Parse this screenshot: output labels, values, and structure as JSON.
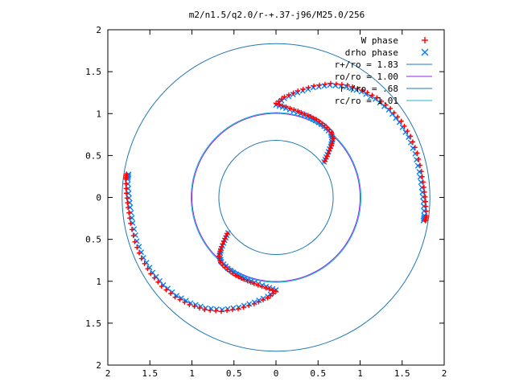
{
  "chart_data": {
    "type": "scatter",
    "title": "m2/n1.5/q2.0/r-+.37-j96/M25.0/256",
    "xlabel": "",
    "ylabel": "",
    "xlim": [
      -2,
      2
    ],
    "ylim": [
      -2,
      2
    ],
    "x_tick_labels": [
      "2",
      "1.5",
      "1",
      "0.5",
      "0",
      "0.5",
      "1",
      "1.5",
      "2"
    ],
    "y_tick_labels": [
      "2",
      "1.5",
      "1",
      "0.5",
      "0",
      "0.5",
      "1",
      "1.5",
      "2"
    ],
    "x_tick_values": [
      -2,
      -1.5,
      -1,
      -0.5,
      0,
      0.5,
      1,
      1.5,
      2
    ],
    "y_tick_values": [
      -2,
      -1.5,
      -1,
      -0.5,
      0,
      0.5,
      1,
      1.5,
      2
    ],
    "grid": false,
    "legend_position": "top-right",
    "series": [
      {
        "name": "W phase",
        "marker": "plus",
        "color": "#ff0000"
      },
      {
        "name": "drho phase",
        "marker": "cross",
        "color": "#0080ff"
      },
      {
        "name": "r+/ro = 1.83",
        "marker": "line",
        "color": "#1f78b4",
        "radius": 1.83
      },
      {
        "name": "ro/ro = 1.00",
        "marker": "line",
        "color": "#8a2be2",
        "radius": 1.0
      },
      {
        "name": "r-/ro = .68",
        "marker": "line",
        "color": "#1f78b4",
        "radius": 0.68
      },
      {
        "name": "rc/ro = 1.01",
        "marker": "line",
        "color": "#20b2d8",
        "radius": 1.01
      }
    ],
    "arms": [
      {
        "arm": "upper-right",
        "points": [
          [
            0.58,
            0.43
          ],
          [
            0.62,
            0.52
          ],
          [
            0.66,
            0.62
          ],
          [
            0.68,
            0.7
          ],
          [
            0.66,
            0.78
          ],
          [
            0.58,
            0.86
          ],
          [
            0.48,
            0.93
          ],
          [
            0.38,
            0.98
          ],
          [
            0.26,
            1.03
          ],
          [
            0.12,
            1.08
          ],
          [
            0.0,
            1.12
          ],
          [
            0.1,
            1.2
          ],
          [
            0.26,
            1.27
          ],
          [
            0.45,
            1.33
          ],
          [
            0.65,
            1.36
          ],
          [
            0.85,
            1.34
          ],
          [
            1.03,
            1.28
          ],
          [
            1.2,
            1.19
          ],
          [
            1.36,
            1.06
          ],
          [
            1.49,
            0.91
          ],
          [
            1.6,
            0.73
          ],
          [
            1.68,
            0.53
          ],
          [
            1.73,
            0.31
          ],
          [
            1.76,
            0.12
          ],
          [
            1.78,
            -0.05
          ],
          [
            1.79,
            -0.22
          ],
          [
            1.78,
            -0.28
          ]
        ]
      },
      {
        "arm": "lower-left",
        "points": [
          [
            -0.58,
            -0.43
          ],
          [
            -0.62,
            -0.52
          ],
          [
            -0.66,
            -0.62
          ],
          [
            -0.68,
            -0.7
          ],
          [
            -0.66,
            -0.78
          ],
          [
            -0.58,
            -0.86
          ],
          [
            -0.48,
            -0.93
          ],
          [
            -0.38,
            -0.98
          ],
          [
            -0.26,
            -1.03
          ],
          [
            -0.12,
            -1.08
          ],
          [
            0.0,
            -1.12
          ],
          [
            -0.1,
            -1.2
          ],
          [
            -0.26,
            -1.27
          ],
          [
            -0.45,
            -1.33
          ],
          [
            -0.65,
            -1.36
          ],
          [
            -0.85,
            -1.34
          ],
          [
            -1.03,
            -1.28
          ],
          [
            -1.2,
            -1.19
          ],
          [
            -1.36,
            -1.06
          ],
          [
            -1.49,
            -0.91
          ],
          [
            -1.6,
            -0.73
          ],
          [
            -1.68,
            -0.53
          ],
          [
            -1.73,
            -0.31
          ],
          [
            -1.76,
            -0.12
          ],
          [
            -1.78,
            0.05
          ],
          [
            -1.79,
            0.22
          ],
          [
            -1.78,
            0.28
          ]
        ]
      }
    ]
  }
}
